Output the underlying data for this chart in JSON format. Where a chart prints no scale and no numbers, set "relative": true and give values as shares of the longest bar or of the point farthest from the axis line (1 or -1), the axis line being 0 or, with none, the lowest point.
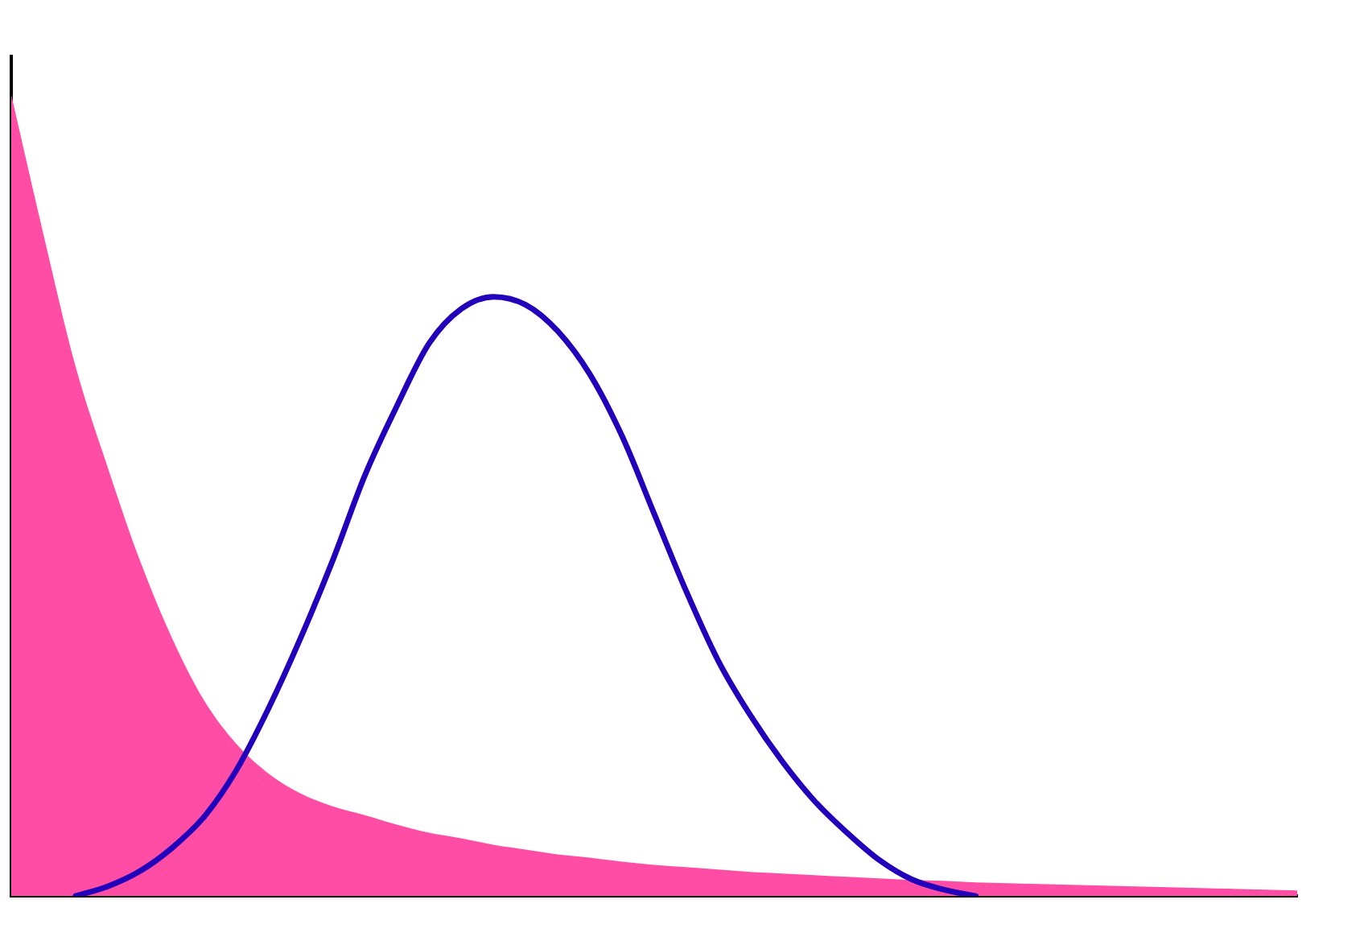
{
  "chart_data": {
    "type": "line",
    "relative": true,
    "grid": false,
    "legend": false,
    "marker": "none",
    "line_style": "solid",
    "categories": [
      null,
      null,
      null,
      null,
      null,
      null,
      null,
      null,
      null,
      null,
      null,
      null,
      null,
      null,
      null,
      null,
      null,
      null,
      null,
      null,
      null,
      null,
      null,
      null,
      null,
      null,
      null,
      null,
      null,
      null,
      null,
      null,
      null,
      null,
      null,
      null,
      null,
      null,
      null,
      null,
      null
    ],
    "series": [
      {
        "type": "area",
        "color": "#ff4da6",
        "values": [
          1.0,
          0.826,
          0.661,
          0.535,
          0.419,
          0.322,
          0.244,
          0.19,
          0.153,
          0.128,
          0.112,
          0.101,
          0.089,
          0.079,
          0.072,
          0.064,
          0.058,
          0.052,
          0.048,
          0.043,
          0.039,
          0.036,
          0.033,
          0.03,
          0.028,
          0.026,
          0.024,
          0.022,
          0.02,
          0.019,
          0.017,
          0.016,
          0.015,
          0.014,
          0.013,
          0.012,
          0.011,
          0.01,
          0.009,
          0.008,
          0.007
        ]
      },
      {
        "color": "#2200bb",
        "values": [
          null,
          null,
          0,
          0.012,
          0.031,
          0.06,
          0.099,
          0.157,
          0.234,
          0.322,
          0.419,
          0.525,
          0.612,
          0.69,
          0.733,
          0.748,
          0.738,
          0.705,
          0.651,
          0.574,
          0.477,
          0.38,
          0.293,
          0.225,
          0.167,
          0.118,
          0.079,
          0.045,
          0.021,
          0.008,
          0,
          null,
          null,
          null,
          null,
          null,
          null,
          null,
          null,
          null,
          null
        ]
      }
    ]
  }
}
